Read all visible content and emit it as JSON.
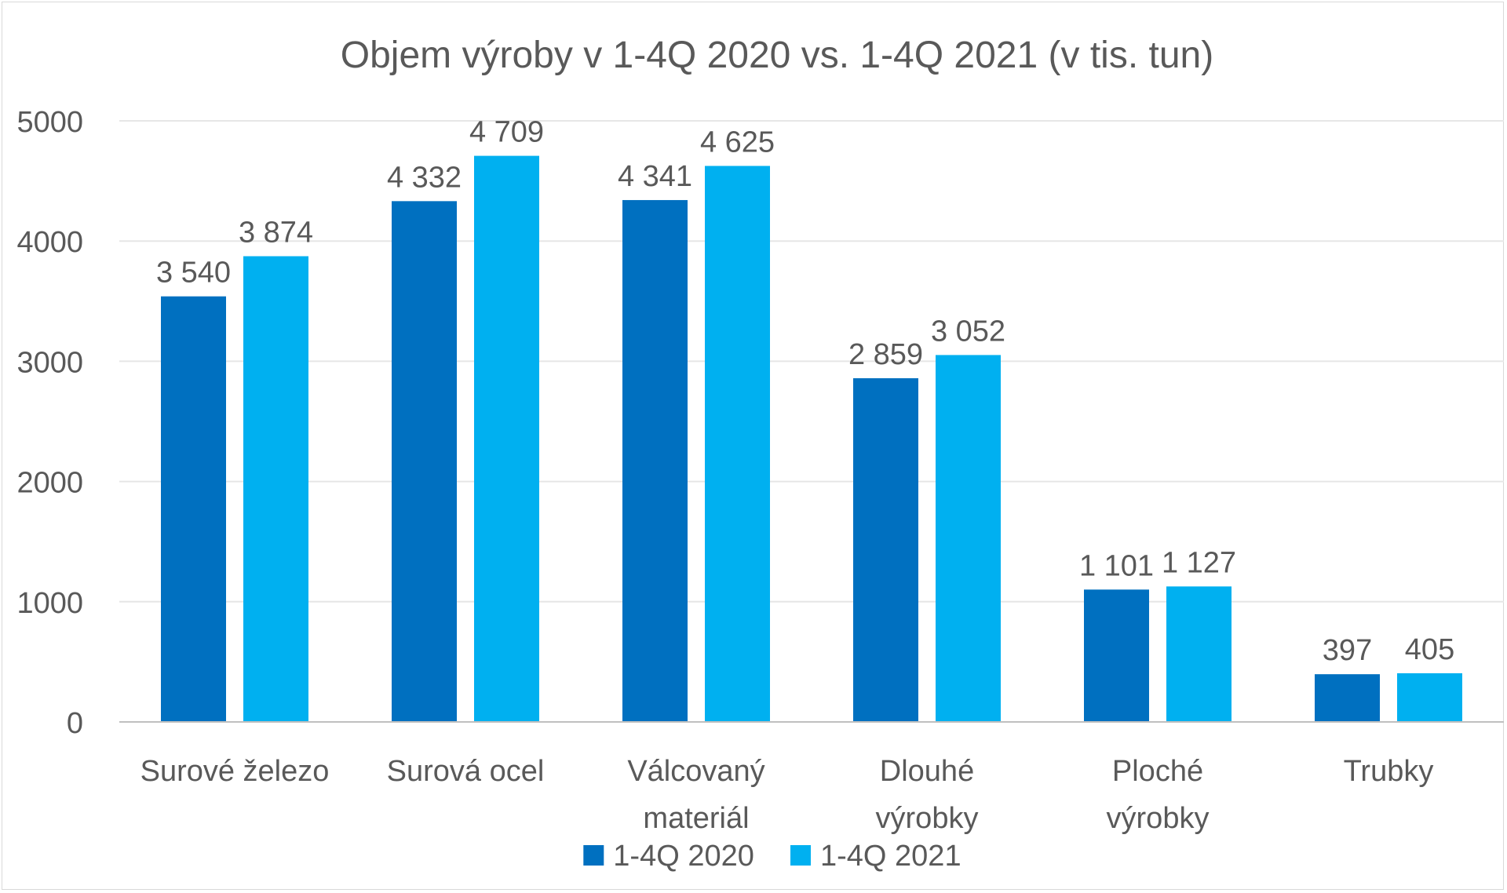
{
  "chart_data": {
    "type": "bar",
    "title": "Objem výroby v 1-4Q 2020 vs. 1-4Q 2021 (v tis. tun)",
    "xlabel": "",
    "ylabel": "",
    "ylim": [
      0,
      5000
    ],
    "yticks": [
      0,
      1000,
      2000,
      3000,
      4000,
      5000
    ],
    "yticks_text": [
      "0",
      "1000",
      "2000",
      "3000",
      "4000",
      "5000"
    ],
    "grid": true,
    "legend_position": "bottom",
    "categories": [
      [
        "Surové železo"
      ],
      [
        "Surová ocel"
      ],
      [
        "Válcovaný",
        "materiál"
      ],
      [
        "Dlouhé",
        "výrobky"
      ],
      [
        "Ploché",
        "výrobky"
      ],
      [
        "Trubky"
      ]
    ],
    "series": [
      {
        "name": "1-4Q 2020",
        "color": "#0070c0",
        "values": [
          3540,
          4332,
          4341,
          2859,
          1101,
          397
        ],
        "labels": [
          "3 540",
          "4 332",
          "4 341",
          "2 859",
          "1 101",
          "397"
        ]
      },
      {
        "name": "1-4Q 2021",
        "color": "#00b0f0",
        "values": [
          3874,
          4709,
          4625,
          3052,
          1127,
          405
        ],
        "labels": [
          "3 874",
          "4 709",
          "4 625",
          "3 052",
          "1 127",
          "405"
        ]
      }
    ]
  }
}
